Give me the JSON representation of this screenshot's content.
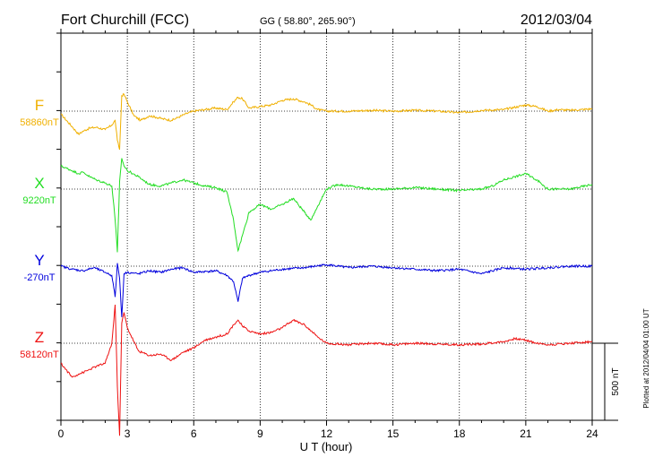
{
  "header": {
    "station": "Fort Churchill (FCC)",
    "coords": "GG ( 58.80°, 265.90°)",
    "date": "2012/03/04"
  },
  "side_note": "Plotted at 2012/04/04 01:00 UT",
  "scale_label": "500 nT",
  "scale_value_nT": 500,
  "chart_data": {
    "type": "line",
    "xlabel": "U T (hour)",
    "xlim": [
      0,
      24
    ],
    "xticks": [
      0,
      3,
      6,
      9,
      12,
      15,
      18,
      21,
      24
    ],
    "grid": true,
    "series": [
      {
        "name": "F",
        "baseline_label": "58860nT",
        "baseline_nT": 58860,
        "color": "#f0b000",
        "x": [
          0,
          0.5,
          0.8,
          1.0,
          1.3,
          1.6,
          2.0,
          2.3,
          2.45,
          2.55,
          2.65,
          2.75,
          2.85,
          3.0,
          3.3,
          3.6,
          4.0,
          4.3,
          4.6,
          5.0,
          5.3,
          5.6,
          6.0,
          6.5,
          7.0,
          7.5,
          7.8,
          8.0,
          8.2,
          8.5,
          9.0,
          9.5,
          10.0,
          10.5,
          11.0,
          11.3,
          11.6,
          12.0,
          13.0,
          14.0,
          15.0,
          16.0,
          17.0,
          18.0,
          19.0,
          20.0,
          21.0,
          21.5,
          22.0,
          22.5,
          23.0,
          23.5,
          24.0
        ],
        "y": [
          -20,
          -100,
          -150,
          -130,
          -110,
          -105,
          -120,
          -90,
          -60,
          -190,
          -250,
          100,
          110,
          60,
          -30,
          -60,
          -30,
          -40,
          -50,
          -60,
          -40,
          -20,
          0,
          10,
          20,
          10,
          60,
          90,
          80,
          20,
          30,
          40,
          70,
          80,
          60,
          40,
          10,
          0,
          0,
          5,
          0,
          5,
          0,
          -10,
          5,
          10,
          40,
          30,
          0,
          10,
          5,
          10,
          15
        ]
      },
      {
        "name": "X",
        "baseline_label": "9220nT",
        "baseline_nT": 9220,
        "color": "#22dd22",
        "x": [
          0,
          0.5,
          0.8,
          1.0,
          1.3,
          1.6,
          2.0,
          2.3,
          2.45,
          2.55,
          2.65,
          2.75,
          2.85,
          3.0,
          3.5,
          4.0,
          4.5,
          5.0,
          5.5,
          6.0,
          6.5,
          7.0,
          7.5,
          7.8,
          8.0,
          8.2,
          8.5,
          9.0,
          9.5,
          10.0,
          10.5,
          11.0,
          11.3,
          11.6,
          12.0,
          12.5,
          13.0,
          14.0,
          15.0,
          16.0,
          17.0,
          18.0,
          19.0,
          19.5,
          20.0,
          20.5,
          21.0,
          21.5,
          22.0,
          23.0,
          24.0
        ],
        "y": [
          150,
          120,
          100,
          110,
          80,
          60,
          40,
          20,
          -200,
          -410,
          50,
          200,
          150,
          120,
          80,
          30,
          20,
          40,
          60,
          40,
          20,
          10,
          -20,
          -200,
          -400,
          -300,
          -150,
          -100,
          -130,
          -100,
          -60,
          -150,
          -200,
          -110,
          0,
          30,
          20,
          0,
          0,
          10,
          0,
          -10,
          0,
          20,
          60,
          80,
          100,
          60,
          0,
          0,
          30
        ]
      },
      {
        "name": "Y",
        "baseline_label": "-270nT",
        "baseline_nT": -270,
        "color": "#0000dd",
        "x": [
          0,
          0.5,
          1.0,
          1.5,
          2.0,
          2.3,
          2.45,
          2.55,
          2.65,
          2.75,
          2.85,
          3.0,
          3.5,
          4.0,
          4.5,
          5.0,
          5.5,
          6.0,
          7.0,
          7.5,
          7.8,
          8.0,
          8.2,
          8.5,
          9.0,
          10.0,
          11.0,
          12.0,
          13.0,
          14.0,
          15.0,
          16.0,
          17.0,
          18.0,
          19.0,
          20.0,
          21.0,
          22.0,
          23.0,
          24.0
        ],
        "y": [
          0,
          -20,
          -30,
          -10,
          -40,
          -60,
          -200,
          20,
          -80,
          -330,
          -50,
          -40,
          -50,
          -30,
          -40,
          -20,
          -10,
          -40,
          -30,
          -60,
          -100,
          -230,
          -80,
          -60,
          -40,
          -20,
          -10,
          10,
          -10,
          0,
          -10,
          -20,
          -30,
          -20,
          -50,
          -10,
          -20,
          -10,
          0,
          0
        ]
      },
      {
        "name": "Z",
        "baseline_label": "58120nT",
        "baseline_nT": 58120,
        "color": "#ee1111",
        "x": [
          0,
          0.5,
          0.8,
          1.0,
          1.3,
          1.6,
          2.0,
          2.3,
          2.45,
          2.55,
          2.65,
          2.75,
          2.85,
          3.0,
          3.5,
          4.0,
          4.5,
          5.0,
          5.5,
          6.0,
          6.5,
          7.0,
          7.5,
          7.8,
          8.0,
          8.2,
          8.5,
          9.0,
          9.5,
          10.0,
          10.5,
          11.0,
          11.3,
          11.6,
          12.0,
          13.0,
          14.0,
          15.0,
          16.0,
          17.0,
          18.0,
          19.0,
          20.0,
          20.5,
          21.0,
          21.5,
          22.0,
          23.0,
          24.0
        ],
        "y": [
          -130,
          -220,
          -200,
          -190,
          -170,
          -150,
          -130,
          0,
          250,
          -280,
          -600,
          130,
          200,
          100,
          -50,
          -80,
          -70,
          -110,
          -60,
          -30,
          20,
          40,
          60,
          120,
          150,
          110,
          80,
          60,
          70,
          100,
          150,
          120,
          80,
          40,
          0,
          -10,
          0,
          -10,
          0,
          -5,
          -10,
          -5,
          10,
          30,
          20,
          0,
          -10,
          0,
          10
        ]
      }
    ]
  }
}
